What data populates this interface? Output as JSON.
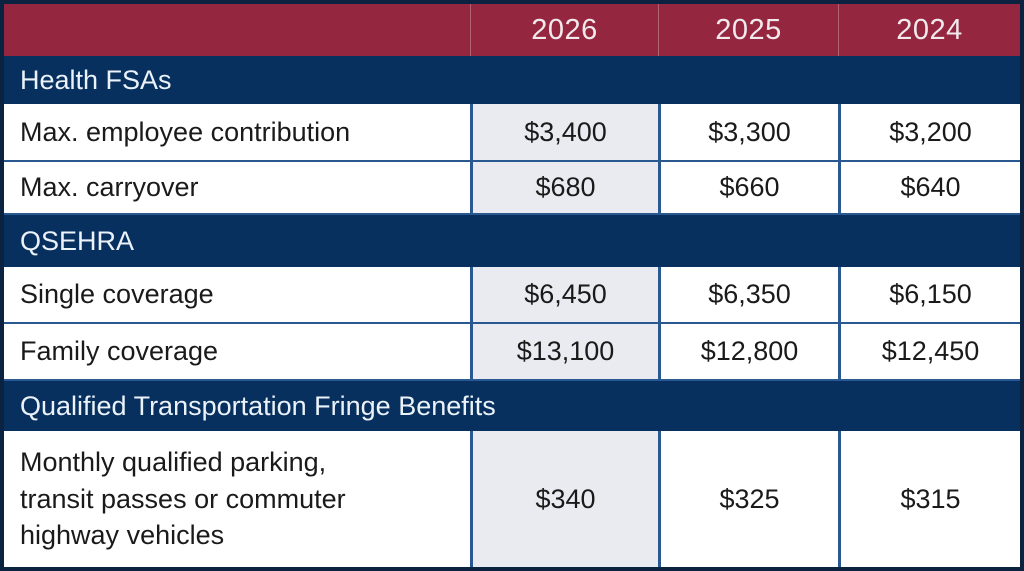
{
  "chart_data": {
    "type": "table",
    "title": "",
    "columns": [
      "",
      "2026",
      "2025",
      "2024"
    ],
    "highlighted_column": "2026",
    "sections": [
      {
        "header": "Health FSAs",
        "rows": [
          {
            "label": "Max. employee contribution",
            "values": [
              "$3,400",
              "$3,300",
              "$3,200"
            ]
          },
          {
            "label": "Max. carryover",
            "values": [
              "$680",
              "$660",
              "$640"
            ]
          }
        ]
      },
      {
        "header": "QSEHRA",
        "rows": [
          {
            "label": "Single coverage",
            "values": [
              "$6,450",
              "$6,350",
              "$6,150"
            ]
          },
          {
            "label": "Family coverage",
            "values": [
              "$13,100",
              "$12,800",
              "$12,450"
            ]
          }
        ]
      },
      {
        "header": "Qualified Transportation Fringe Benefits",
        "rows": [
          {
            "label": "Monthly qualified parking, transit passes or commuter highway vehicles",
            "values": [
              "$340",
              "$325",
              "$315"
            ]
          }
        ]
      }
    ],
    "numeric_values": {
      "health_fsa_max_contribution": [
        3400,
        3300,
        3200
      ],
      "health_fsa_max_carryover": [
        680,
        660,
        640
      ],
      "qsehra_single": [
        6450,
        6350,
        6150
      ],
      "qsehra_family": [
        13100,
        12800,
        12450
      ],
      "transportation_monthly": [
        340,
        325,
        315
      ]
    }
  },
  "colors": {
    "year_header_bg": "#942640",
    "section_header_bg": "#07305F",
    "highlight_column_bg": "#E9EBF1",
    "grid_border": "#2A5890",
    "outer_border": "#0B2341",
    "cell_text": "#1A1A1A",
    "header_text": "#F2E9EC"
  }
}
